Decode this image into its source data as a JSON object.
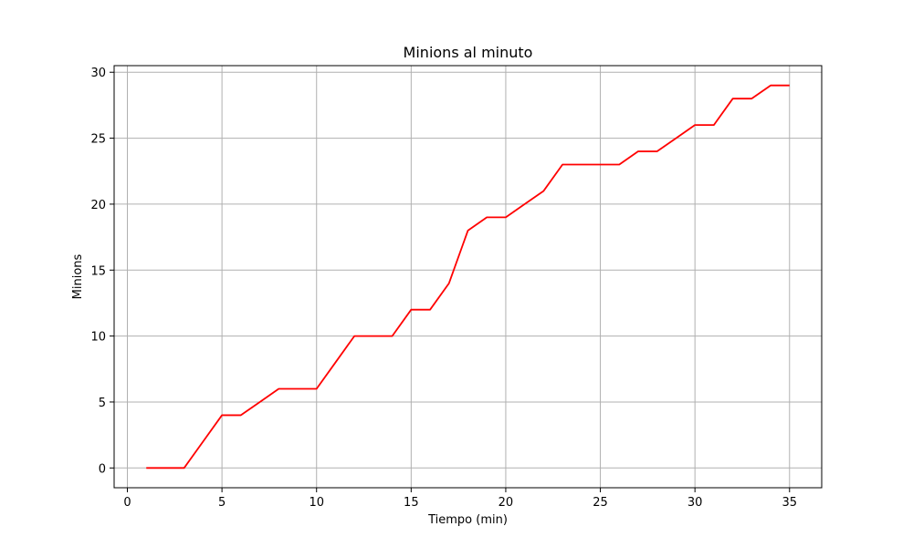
{
  "chart_data": {
    "type": "line",
    "title": "Minions al minuto",
    "xlabel": "Tiempo (min)",
    "ylabel": "Minions",
    "xlim": [
      -0.7,
      36.7
    ],
    "ylim": [
      -1.5,
      30.5
    ],
    "xticks": [
      0,
      5,
      10,
      15,
      20,
      25,
      30,
      35
    ],
    "yticks": [
      0,
      5,
      10,
      15,
      20,
      25,
      30
    ],
    "grid": true,
    "series": [
      {
        "color": "#ff0000",
        "x": [
          1,
          2,
          3,
          4,
          5,
          6,
          7,
          8,
          9,
          10,
          11,
          12,
          13,
          14,
          15,
          16,
          17,
          18,
          19,
          20,
          21,
          22,
          23,
          24,
          25,
          26,
          27,
          28,
          29,
          30,
          31,
          32,
          33,
          34,
          35
        ],
        "y": [
          0,
          0,
          0,
          2,
          4,
          4,
          5,
          6,
          6,
          6,
          8,
          10,
          10,
          10,
          12,
          12,
          14,
          18,
          19,
          19,
          20,
          21,
          23,
          23,
          23,
          23,
          24,
          24,
          25,
          26,
          26,
          28,
          28,
          29,
          29
        ]
      }
    ]
  }
}
